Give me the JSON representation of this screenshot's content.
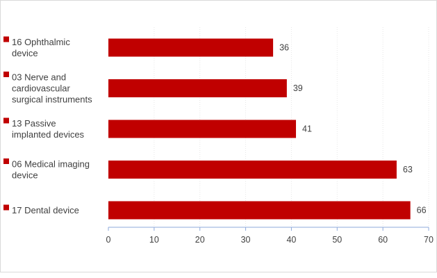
{
  "chart_data": {
    "type": "bar",
    "orientation": "horizontal",
    "categories": [
      [
        "16 Ophthalmic",
        "device"
      ],
      [
        "03 Nerve and",
        "cardiovascular",
        "surgical instruments"
      ],
      [
        "13 Passive",
        "implanted devices"
      ],
      [
        "06 Medical imaging",
        "device"
      ],
      [
        "17 Dental device"
      ]
    ],
    "values": [
      36,
      39,
      41,
      63,
      66
    ],
    "value_labels": [
      "36",
      "39",
      "41",
      "63",
      "66"
    ],
    "xlim": [
      0,
      70
    ],
    "x_ticks": [
      0,
      10,
      20,
      30,
      40,
      50,
      60,
      70
    ],
    "x_tick_labels": [
      "0",
      "10",
      "20",
      "30",
      "40",
      "50",
      "60",
      "70"
    ],
    "grid": "vertical-dotted",
    "legend": "none",
    "colors": {
      "bar": "#C00000",
      "marker": "#C00000",
      "axis": "#8EA9DB",
      "grid": "#e6e6e6",
      "text": "#404040"
    }
  }
}
